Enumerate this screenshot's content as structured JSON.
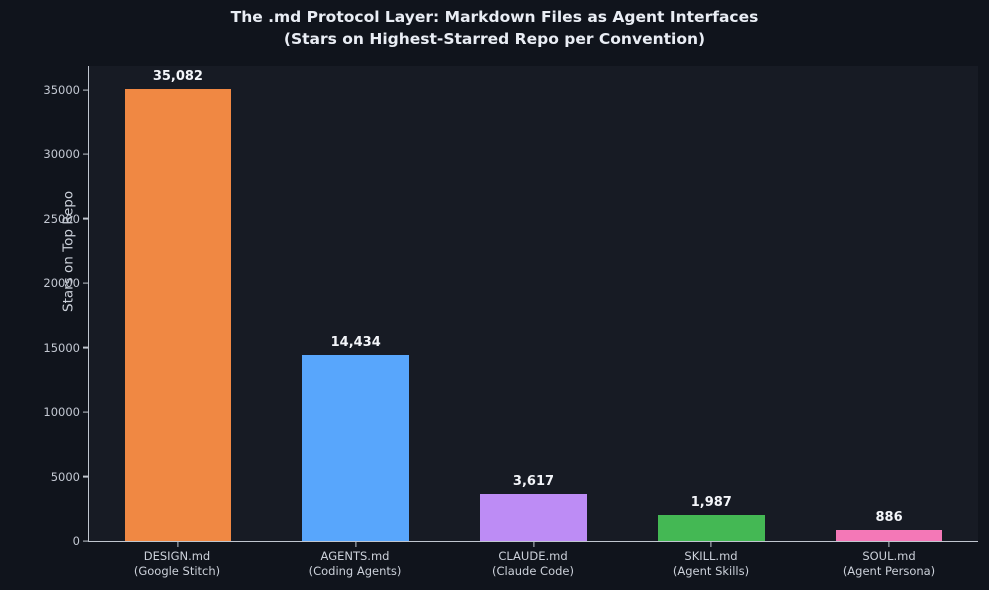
{
  "chart_data": {
    "type": "bar",
    "title": "The .md Protocol Layer: Markdown Files as Agent Interfaces",
    "subtitle": "(Stars on Highest-Starred Repo per Convention)",
    "xlabel": "",
    "ylabel": "Stars on Top Repo",
    "categories": [
      [
        "DESIGN.md",
        "(Google Stitch)"
      ],
      [
        "AGENTS.md",
        "(Coding Agents)"
      ],
      [
        "CLAUDE.md",
        "(Claude Code)"
      ],
      [
        "SKILL.md",
        "(Agent Skills)"
      ],
      [
        "SOUL.md",
        "(Agent Persona)"
      ]
    ],
    "values": [
      35082,
      14434,
      3617,
      1987,
      886
    ],
    "value_labels": [
      "35,082",
      "14,434",
      "3,617",
      "1,987",
      "886"
    ],
    "bar_colors": [
      "#f08843",
      "#58a6fc",
      "#bd8cf5",
      "#44b854",
      "#f478b7"
    ],
    "yticks": [
      0,
      5000,
      10000,
      15000,
      20000,
      25000,
      30000,
      35000
    ],
    "ylim": [
      0,
      36836
    ],
    "grid": false,
    "legend": null,
    "theme": {
      "figure_background": "#10141c",
      "plot_background": "#171b24",
      "spine_color": "#c0c6cf",
      "title_color": "#e9edf4",
      "tick_label_color": "#c3c8d2",
      "value_label_color": "#f3f5f9"
    }
  }
}
